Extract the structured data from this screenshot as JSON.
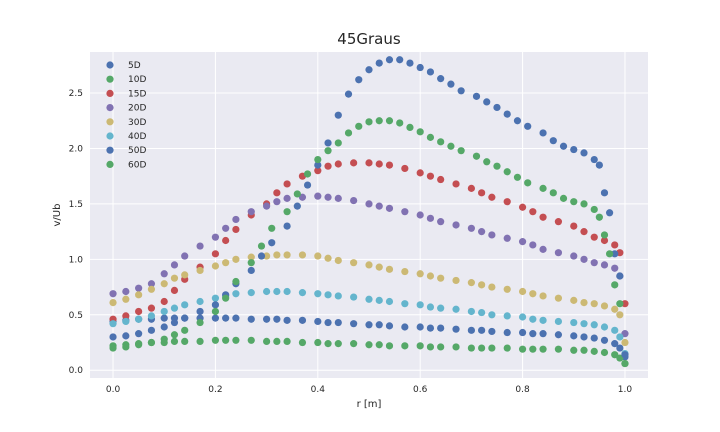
{
  "chart_data": {
    "type": "scatter",
    "title": "45Graus",
    "xlabel": "r [m]",
    "ylabel": "v/Ub",
    "xlim": [
      -0.045,
      1.045
    ],
    "ylim": [
      -0.07,
      2.87
    ],
    "xticks": [
      0.0,
      0.2,
      0.4,
      0.6,
      0.8,
      1.0
    ],
    "xtick_labels": [
      "0.0",
      "0.2",
      "0.4",
      "0.6",
      "0.8",
      "1.0"
    ],
    "yticks": [
      0.0,
      0.5,
      1.0,
      1.5,
      2.0,
      2.5
    ],
    "ytick_labels": [
      "0.0",
      "0.5",
      "1.0",
      "1.5",
      "2.0",
      "2.5"
    ],
    "grid": true,
    "legend_position": "top-left",
    "style": "seaborn-darkgrid",
    "series": [
      {
        "name": "5D",
        "color": "#4c72b0",
        "x": [
          0.0,
          0.025,
          0.05,
          0.075,
          0.1,
          0.12,
          0.14,
          0.17,
          0.2,
          0.22,
          0.24,
          0.27,
          0.3,
          0.32,
          0.34,
          0.37,
          0.4,
          0.42,
          0.44,
          0.47,
          0.5,
          0.52,
          0.54,
          0.57,
          0.6,
          0.62,
          0.64,
          0.67,
          0.7,
          0.72,
          0.74,
          0.77,
          0.8,
          0.82,
          0.84,
          0.87,
          0.9,
          0.92,
          0.94,
          0.96,
          0.98,
          0.99,
          1.0
        ],
        "y": [
          0.44,
          0.45,
          0.46,
          0.46,
          0.47,
          0.47,
          0.47,
          0.47,
          0.47,
          0.47,
          0.47,
          0.46,
          0.46,
          0.46,
          0.45,
          0.45,
          0.44,
          0.43,
          0.43,
          0.42,
          0.41,
          0.41,
          0.4,
          0.39,
          0.39,
          0.38,
          0.38,
          0.37,
          0.36,
          0.36,
          0.35,
          0.34,
          0.34,
          0.33,
          0.33,
          0.32,
          0.31,
          0.3,
          0.29,
          0.27,
          0.24,
          0.2,
          0.12
        ]
      },
      {
        "name": "10D",
        "color": "#55a868",
        "x": [
          0.0,
          0.025,
          0.05,
          0.075,
          0.1,
          0.12,
          0.14,
          0.17,
          0.2,
          0.22,
          0.24,
          0.27,
          0.3,
          0.32,
          0.34,
          0.37,
          0.4,
          0.42,
          0.44,
          0.47,
          0.5,
          0.52,
          0.54,
          0.57,
          0.6,
          0.62,
          0.64,
          0.67,
          0.7,
          0.72,
          0.74,
          0.77,
          0.8,
          0.82,
          0.84,
          0.87,
          0.9,
          0.92,
          0.94,
          0.96,
          0.98,
          0.99,
          1.0
        ],
        "y": [
          0.22,
          0.23,
          0.24,
          0.25,
          0.25,
          0.26,
          0.26,
          0.26,
          0.27,
          0.27,
          0.27,
          0.27,
          0.26,
          0.26,
          0.26,
          0.25,
          0.25,
          0.24,
          0.24,
          0.24,
          0.23,
          0.23,
          0.22,
          0.22,
          0.22,
          0.21,
          0.21,
          0.21,
          0.2,
          0.2,
          0.2,
          0.2,
          0.19,
          0.19,
          0.19,
          0.19,
          0.18,
          0.18,
          0.17,
          0.16,
          0.14,
          0.11,
          0.06
        ]
      },
      {
        "name": "15D",
        "color": "#c44e52",
        "x": [
          0.0,
          0.025,
          0.05,
          0.075,
          0.1,
          0.12,
          0.14,
          0.17,
          0.2,
          0.22,
          0.24,
          0.27,
          0.3,
          0.32,
          0.34,
          0.37,
          0.4,
          0.42,
          0.44,
          0.47,
          0.5,
          0.52,
          0.54,
          0.57,
          0.6,
          0.62,
          0.64,
          0.67,
          0.7,
          0.72,
          0.74,
          0.77,
          0.8,
          0.82,
          0.84,
          0.87,
          0.9,
          0.92,
          0.94,
          0.96,
          0.98,
          0.99,
          1.0
        ],
        "y": [
          0.46,
          0.49,
          0.53,
          0.56,
          0.62,
          0.72,
          0.82,
          0.93,
          1.05,
          1.17,
          1.27,
          1.4,
          1.5,
          1.6,
          1.68,
          1.75,
          1.8,
          1.84,
          1.86,
          1.87,
          1.87,
          1.86,
          1.85,
          1.82,
          1.78,
          1.75,
          1.72,
          1.68,
          1.64,
          1.6,
          1.56,
          1.52,
          1.47,
          1.43,
          1.38,
          1.34,
          1.3,
          1.25,
          1.2,
          1.17,
          1.13,
          1.06,
          0.6
        ]
      },
      {
        "name": "20D",
        "color": "#8172b2",
        "x": [
          0.0,
          0.025,
          0.05,
          0.075,
          0.1,
          0.12,
          0.14,
          0.17,
          0.2,
          0.22,
          0.24,
          0.27,
          0.3,
          0.32,
          0.34,
          0.37,
          0.4,
          0.42,
          0.44,
          0.47,
          0.5,
          0.52,
          0.54,
          0.57,
          0.6,
          0.62,
          0.64,
          0.67,
          0.7,
          0.72,
          0.74,
          0.77,
          0.8,
          0.82,
          0.84,
          0.87,
          0.9,
          0.92,
          0.94,
          0.96,
          0.98,
          0.99,
          1.0
        ],
        "y": [
          0.69,
          0.71,
          0.74,
          0.78,
          0.87,
          0.95,
          1.03,
          1.12,
          1.2,
          1.28,
          1.36,
          1.43,
          1.48,
          1.52,
          1.55,
          1.56,
          1.57,
          1.56,
          1.55,
          1.53,
          1.5,
          1.48,
          1.46,
          1.43,
          1.4,
          1.37,
          1.34,
          1.31,
          1.28,
          1.25,
          1.22,
          1.19,
          1.16,
          1.13,
          1.09,
          1.06,
          1.03,
          1.0,
          0.97,
          0.95,
          0.92,
          0.85,
          0.33
        ]
      },
      {
        "name": "30D",
        "color": "#ccb974",
        "x": [
          0.0,
          0.025,
          0.05,
          0.075,
          0.1,
          0.12,
          0.14,
          0.17,
          0.2,
          0.22,
          0.24,
          0.27,
          0.3,
          0.32,
          0.34,
          0.37,
          0.4,
          0.42,
          0.44,
          0.47,
          0.5,
          0.52,
          0.54,
          0.57,
          0.6,
          0.62,
          0.64,
          0.67,
          0.7,
          0.72,
          0.74,
          0.77,
          0.8,
          0.82,
          0.84,
          0.87,
          0.9,
          0.92,
          0.94,
          0.96,
          0.98,
          0.99,
          1.0
        ],
        "y": [
          0.61,
          0.64,
          0.68,
          0.73,
          0.78,
          0.83,
          0.86,
          0.9,
          0.94,
          0.97,
          1.0,
          1.02,
          1.03,
          1.04,
          1.04,
          1.04,
          1.03,
          1.01,
          0.99,
          0.97,
          0.95,
          0.93,
          0.91,
          0.89,
          0.87,
          0.85,
          0.83,
          0.81,
          0.79,
          0.77,
          0.75,
          0.73,
          0.71,
          0.69,
          0.67,
          0.65,
          0.63,
          0.61,
          0.6,
          0.58,
          0.55,
          0.5,
          0.25
        ]
      },
      {
        "name": "40D",
        "color": "#64b5cd",
        "x": [
          0.0,
          0.025,
          0.05,
          0.075,
          0.1,
          0.12,
          0.14,
          0.17,
          0.2,
          0.22,
          0.24,
          0.27,
          0.3,
          0.32,
          0.34,
          0.37,
          0.4,
          0.42,
          0.44,
          0.47,
          0.5,
          0.52,
          0.54,
          0.57,
          0.6,
          0.62,
          0.64,
          0.67,
          0.7,
          0.72,
          0.74,
          0.77,
          0.8,
          0.82,
          0.84,
          0.87,
          0.9,
          0.92,
          0.94,
          0.96,
          0.98,
          0.99,
          1.0
        ],
        "y": [
          0.42,
          0.44,
          0.46,
          0.49,
          0.53,
          0.56,
          0.59,
          0.62,
          0.65,
          0.67,
          0.69,
          0.7,
          0.71,
          0.71,
          0.71,
          0.7,
          0.69,
          0.68,
          0.67,
          0.66,
          0.64,
          0.63,
          0.62,
          0.6,
          0.59,
          0.57,
          0.56,
          0.55,
          0.53,
          0.52,
          0.5,
          0.49,
          0.48,
          0.46,
          0.45,
          0.44,
          0.43,
          0.42,
          0.41,
          0.39,
          0.36,
          0.3,
          0.15
        ]
      },
      {
        "name": "50D",
        "color": "#4c72b0",
        "x": [
          0.0,
          0.025,
          0.05,
          0.075,
          0.1,
          0.12,
          0.14,
          0.17,
          0.2,
          0.22,
          0.24,
          0.27,
          0.29,
          0.31,
          0.34,
          0.36,
          0.38,
          0.4,
          0.42,
          0.44,
          0.46,
          0.48,
          0.5,
          0.52,
          0.54,
          0.56,
          0.58,
          0.6,
          0.62,
          0.64,
          0.66,
          0.68,
          0.71,
          0.73,
          0.75,
          0.77,
          0.79,
          0.81,
          0.84,
          0.86,
          0.88,
          0.9,
          0.92,
          0.94,
          0.95,
          0.96,
          0.97,
          0.98,
          0.99,
          1.0
        ],
        "y": [
          0.3,
          0.31,
          0.33,
          0.36,
          0.39,
          0.43,
          0.47,
          0.53,
          0.59,
          0.68,
          0.78,
          0.9,
          1.03,
          1.15,
          1.3,
          1.48,
          1.67,
          1.85,
          2.05,
          2.3,
          2.49,
          2.62,
          2.71,
          2.77,
          2.8,
          2.8,
          2.77,
          2.73,
          2.69,
          2.63,
          2.58,
          2.52,
          2.47,
          2.42,
          2.37,
          2.31,
          2.25,
          2.2,
          2.14,
          2.07,
          2.02,
          1.99,
          1.96,
          1.9,
          1.85,
          1.6,
          1.42,
          1.05,
          0.85,
          0.14
        ]
      },
      {
        "name": "60D",
        "color": "#55a868",
        "x": [
          0.0,
          0.025,
          0.05,
          0.075,
          0.1,
          0.12,
          0.14,
          0.17,
          0.2,
          0.22,
          0.24,
          0.27,
          0.29,
          0.31,
          0.34,
          0.36,
          0.38,
          0.4,
          0.42,
          0.44,
          0.46,
          0.48,
          0.5,
          0.52,
          0.54,
          0.56,
          0.58,
          0.6,
          0.62,
          0.64,
          0.66,
          0.68,
          0.71,
          0.73,
          0.75,
          0.77,
          0.79,
          0.81,
          0.84,
          0.86,
          0.88,
          0.9,
          0.92,
          0.94,
          0.95,
          0.96,
          0.97,
          0.98,
          0.99,
          1.0
        ],
        "y": [
          0.2,
          0.21,
          0.23,
          0.25,
          0.28,
          0.32,
          0.36,
          0.43,
          0.53,
          0.65,
          0.8,
          0.97,
          1.12,
          1.28,
          1.43,
          1.59,
          1.77,
          1.9,
          1.98,
          2.05,
          2.14,
          2.2,
          2.24,
          2.25,
          2.25,
          2.23,
          2.19,
          2.15,
          2.1,
          2.06,
          2.02,
          1.98,
          1.93,
          1.88,
          1.84,
          1.79,
          1.74,
          1.69,
          1.64,
          1.6,
          1.55,
          1.52,
          1.5,
          1.45,
          1.38,
          1.22,
          1.05,
          0.77,
          0.6,
          0.06
        ]
      }
    ]
  }
}
